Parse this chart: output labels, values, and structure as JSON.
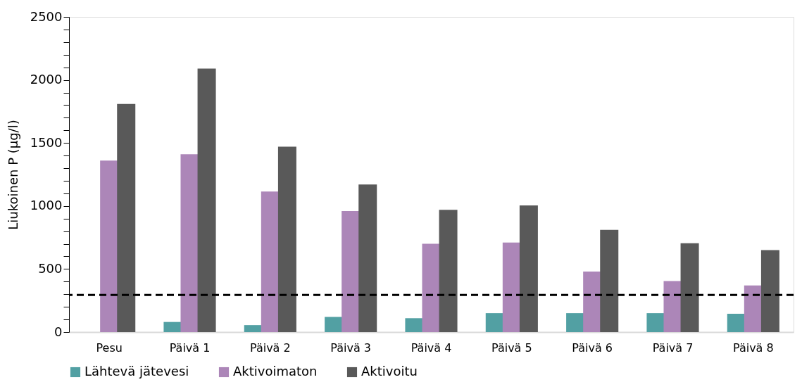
{
  "chart_data": {
    "type": "bar",
    "ylabel": "Liukoinen P (µg/l)",
    "categories": [
      "Pesu",
      "Päivä 1",
      "Päivä 2",
      "Päivä 3",
      "Päivä 4",
      "Päivä 5",
      "Päivä 6",
      "Päivä 7",
      "Päivä 8"
    ],
    "series": [
      {
        "name": "Lähtevä jätevesi",
        "color": "#52a0a3",
        "values": [
          null,
          80,
          55,
          120,
          110,
          150,
          150,
          150,
          145
        ]
      },
      {
        "name": "Aktivoimaton",
        "color": "#ac86b8",
        "values": [
          1360,
          1410,
          1115,
          960,
          700,
          710,
          480,
          405,
          370
        ]
      },
      {
        "name": "Aktivoitu",
        "color": "#595959",
        "values": [
          1810,
          2090,
          1470,
          1170,
          970,
          1005,
          810,
          705,
          650
        ]
      }
    ],
    "ylim": [
      0,
      2500
    ],
    "yticks": [
      0,
      {
        "value": 100,
        "label": null
      },
      {
        "value": 200,
        "label": null
      },
      {
        "value": 300,
        "label": null
      },
      {
        "value": 400,
        "label": null
      },
      500,
      {
        "value": 600,
        "label": null
      },
      {
        "value": 700,
        "label": null
      },
      {
        "value": 800,
        "label": null
      },
      {
        "value": 900,
        "label": null
      },
      1000,
      {
        "value": 1100,
        "label": null
      },
      {
        "value": 1200,
        "label": null
      },
      {
        "value": 1300,
        "label": null
      },
      {
        "value": 1400,
        "label": null
      },
      1500,
      {
        "value": 1600,
        "label": null
      },
      {
        "value": 1700,
        "label": null
      },
      {
        "value": 1800,
        "label": null
      },
      {
        "value": 1900,
        "label": null
      },
      2000,
      {
        "value": 2100,
        "label": null
      },
      {
        "value": 2200,
        "label": null
      },
      {
        "value": 2300,
        "label": null
      },
      {
        "value": 2400,
        "label": null
      },
      2500
    ],
    "ref_lines": [
      {
        "axis": "y",
        "value": 295,
        "color": "#000000",
        "line_style": "dashed"
      }
    ],
    "grid": false,
    "legend": "bottom"
  }
}
